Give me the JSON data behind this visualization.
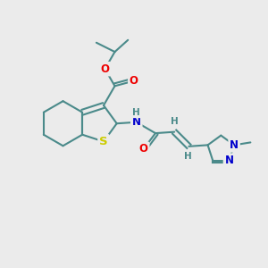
{
  "bg_color": "#ebebeb",
  "bond_color": "#4a8a8a",
  "bond_width": 1.5,
  "atom_colors": {
    "O": "#ee0000",
    "S": "#cccc00",
    "N": "#0000cc",
    "H": "#4a8a8a",
    "C": "#4a8a8a"
  },
  "font_size": 8.5,
  "fig_size": [
    3.0,
    3.0
  ],
  "dpi": 100
}
